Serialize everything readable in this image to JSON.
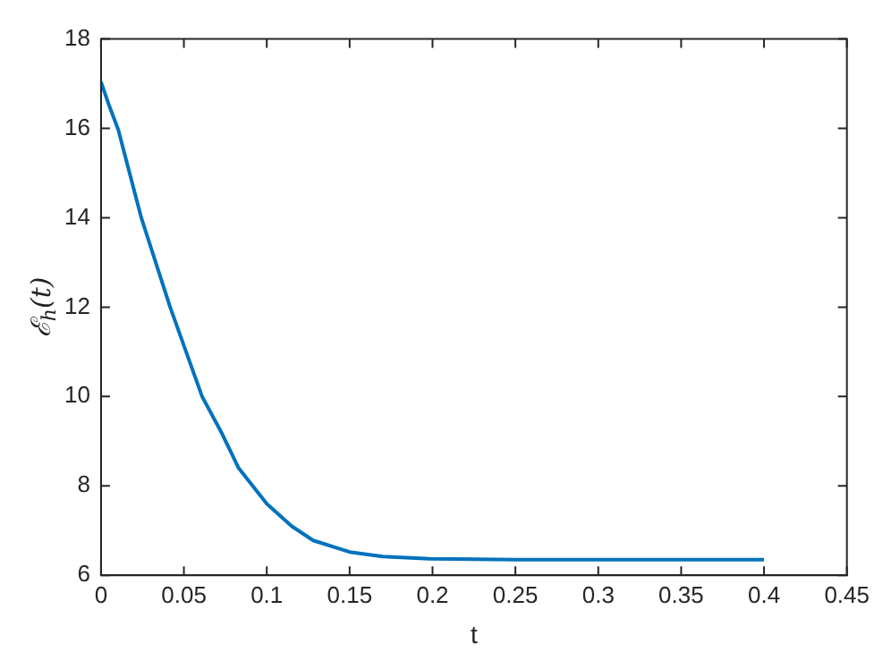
{
  "chart_data": {
    "type": "line",
    "xlabel": "t",
    "ylabel": "ℰ$_{h}$(t)",
    "series": [
      {
        "color": "#0072bd",
        "x": [
          0,
          0.005,
          0.0104,
          0.0243,
          0.0417,
          0.061,
          0.073,
          0.083,
          0.1,
          0.115,
          0.128,
          0.15,
          0.17,
          0.198,
          0.25,
          0.3,
          0.35,
          0.4
        ],
        "values": [
          17.04,
          16.5,
          15.97,
          14.0,
          12.0,
          10.0,
          9.17,
          8.4,
          7.6,
          7.1,
          6.78,
          6.52,
          6.42,
          6.37,
          6.35,
          6.35,
          6.35,
          6.35
        ]
      }
    ],
    "xlim": [
      0,
      0.45
    ],
    "xticks": [
      0,
      0.05,
      0.1,
      0.15,
      0.2,
      0.25,
      0.3,
      0.35,
      0.4,
      0.45
    ],
    "ylim": [
      6,
      18
    ],
    "yticks": [
      6,
      8,
      10,
      12,
      14,
      16,
      18
    ],
    "grid": false,
    "legend": false,
    "marker": "none",
    "line_style": "solid"
  }
}
